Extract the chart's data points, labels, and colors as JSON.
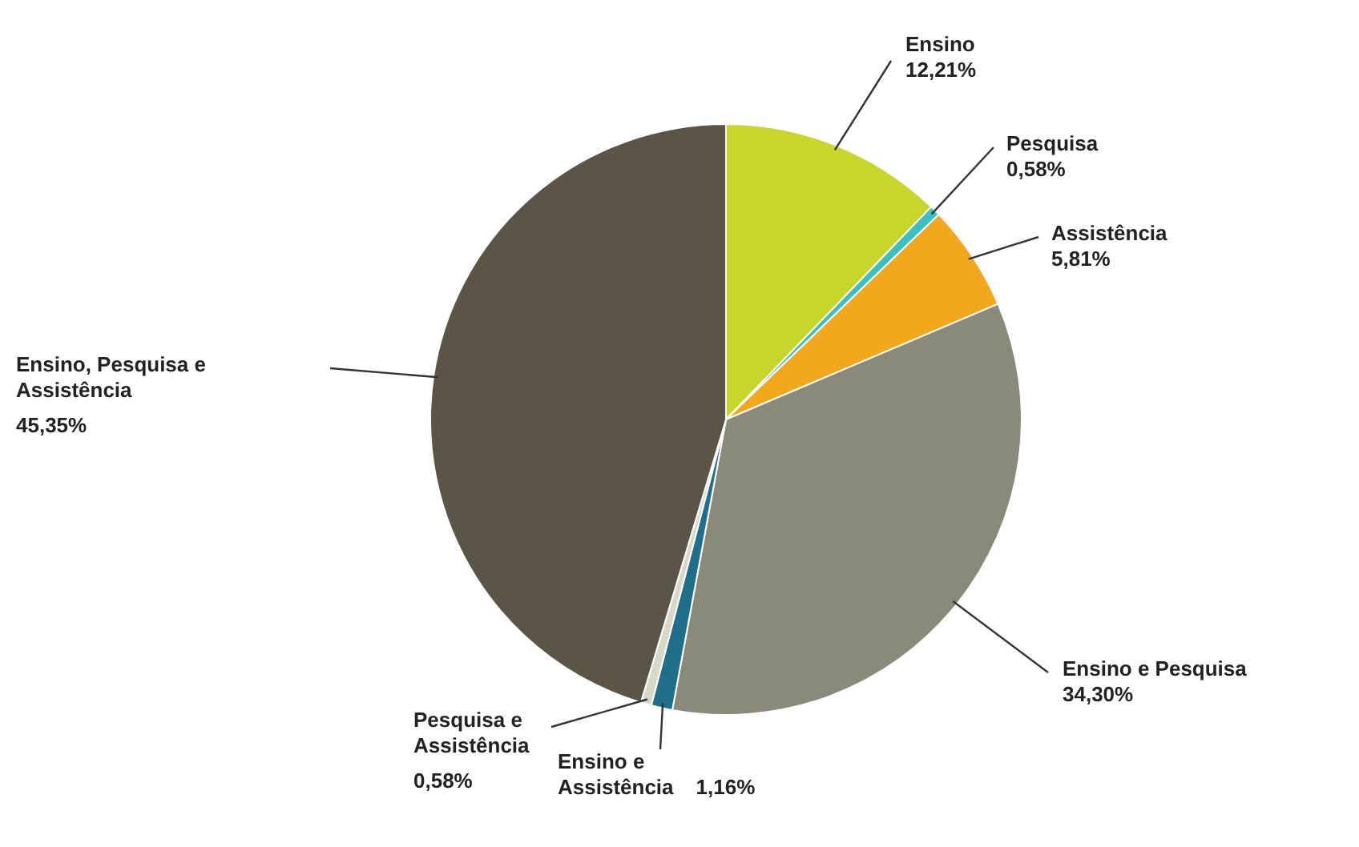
{
  "chart_data": {
    "type": "pie",
    "categories": [
      "Ensino",
      "Pesquisa",
      "Assistência",
      "Ensino e Pesquisa",
      "Ensino e Assistência",
      "Pesquisa e Assistência",
      "Ensino, Pesquisa e Assistência"
    ],
    "values": [
      12.21,
      0.58,
      5.81,
      34.3,
      1.16,
      0.58,
      45.35
    ],
    "colors": [
      "#c8d62b",
      "#3bbfc0",
      "#f2a81d",
      "#8a8a7a",
      "#1f6f8b",
      "#d8d8c8",
      "#5a5547"
    ],
    "value_labels": [
      "12,21%",
      "0,58%",
      "5,81%",
      "34,30%",
      "1,16%",
      "0,58%",
      "45,35%"
    ],
    "legend": false
  }
}
